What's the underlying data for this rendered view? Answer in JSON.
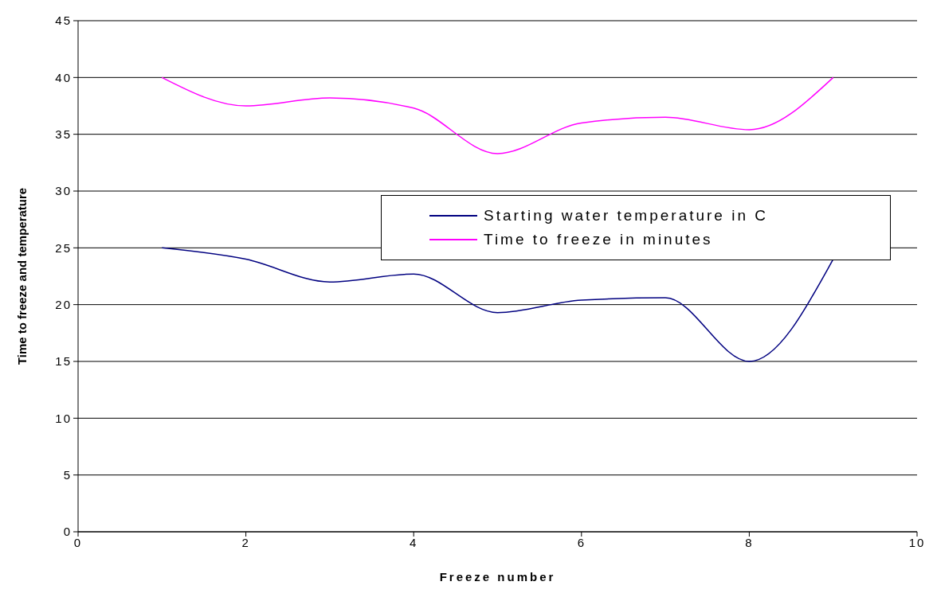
{
  "chart_data": {
    "type": "line",
    "xlabel": "Freeze number",
    "ylabel": "Time to freeze and temperature",
    "x": [
      1,
      2,
      3,
      4,
      5,
      6,
      7,
      8,
      9
    ],
    "series": [
      {
        "name": "Starting water temperature in C",
        "color": "#000080",
        "values": [
          25,
          24,
          22,
          22.7,
          19.3,
          20.4,
          20.6,
          15,
          24
        ]
      },
      {
        "name": "Time to freeze in minutes",
        "color": "#ff00ff",
        "values": [
          40,
          37.5,
          38.2,
          37.3,
          33.3,
          36,
          36.5,
          35.4,
          40
        ]
      }
    ],
    "xlim": [
      0,
      10
    ],
    "xticks": [
      0,
      2,
      4,
      6,
      8,
      10
    ],
    "ylim": [
      0,
      45
    ],
    "yticks": [
      0,
      5,
      10,
      15,
      20,
      25,
      30,
      35,
      40,
      45
    ],
    "grid": "y",
    "legend": "right",
    "marker": "none",
    "line_style": "solid"
  }
}
